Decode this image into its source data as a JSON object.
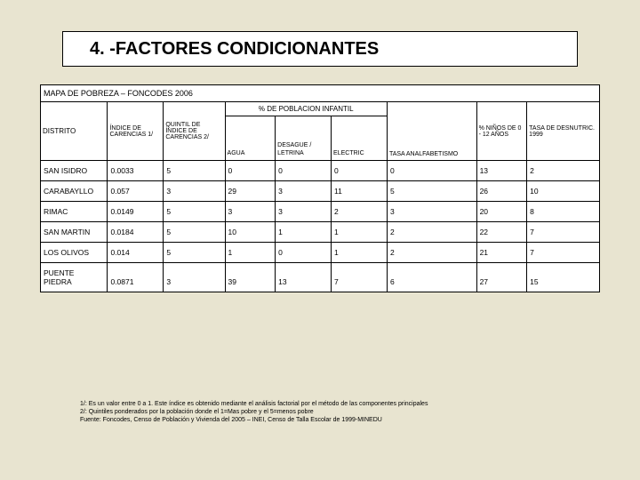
{
  "title": "4. -FACTORES CONDICIONANTES",
  "table": {
    "caption": "MAPA DE POBREZA – FONCODES 2006",
    "subheader": "% DE POBLACION INFANTIL",
    "headers": {
      "distrito": "DISTRITO",
      "indice": "ÍNDICE DE CARENCIAS 1/",
      "quintil": "QUINTIL DE ÍNDICE DE CARENCIAS 2/",
      "agua": "AGUA",
      "desague": "DESAGUE / LETRINA",
      "electric": "ELECTRIC",
      "tasa": "TASA ANALFABETISMO",
      "ninos": "% NIÑOS DE 0 - 12 AÑOS",
      "desnutric": "TASA DE DESNUTRIC. 1999"
    },
    "rows": [
      {
        "distrito": "SAN ISIDRO",
        "indice": "0.0033",
        "quintil": "5",
        "agua": "0",
        "desague": "0",
        "electric": "0",
        "tasa": "0",
        "ninos": "13",
        "desnutric": "2"
      },
      {
        "distrito": "CARABAYLLO",
        "indice": "0.057",
        "quintil": "3",
        "agua": "29",
        "desague": "3",
        "electric": "11",
        "tasa": "5",
        "ninos": "26",
        "desnutric": "10"
      },
      {
        "distrito": "RIMAC",
        "indice": "0.0149",
        "quintil": "5",
        "agua": "3",
        "desague": "3",
        "electric": "2",
        "tasa": "3",
        "ninos": "20",
        "desnutric": "8"
      },
      {
        "distrito": "SAN MARTIN",
        "indice": "0.0184",
        "quintil": "5",
        "agua": "10",
        "desague": "1",
        "electric": "1",
        "tasa": "2",
        "ninos": "22",
        "desnutric": "7"
      },
      {
        "distrito": "LOS OLIVOS",
        "indice": "0.014",
        "quintil": "5",
        "agua": "1",
        "desague": "0",
        "electric": "1",
        "tasa": "2",
        "ninos": "21",
        "desnutric": "7"
      },
      {
        "distrito": "PUENTE PIEDRA",
        "indice": "0.0871",
        "quintil": "3",
        "agua": "39",
        "desague": "13",
        "electric": "7",
        "tasa": "6",
        "ninos": "27",
        "desnutric": "15"
      }
    ]
  },
  "footnotes": [
    "1/: Es un valor entre 0 a 1. Este índice es obtenido mediante el análisis factorial por el método de las componentes principales",
    "2/: Quintiles ponderados por la población donde el 1=Mas pobre y el 5=menos pobre",
    "Fuente: Foncodes, Censo de Población y Vivienda del 2005 – INEI, Censo de Talla Escolar de 1999-MINEDU"
  ]
}
